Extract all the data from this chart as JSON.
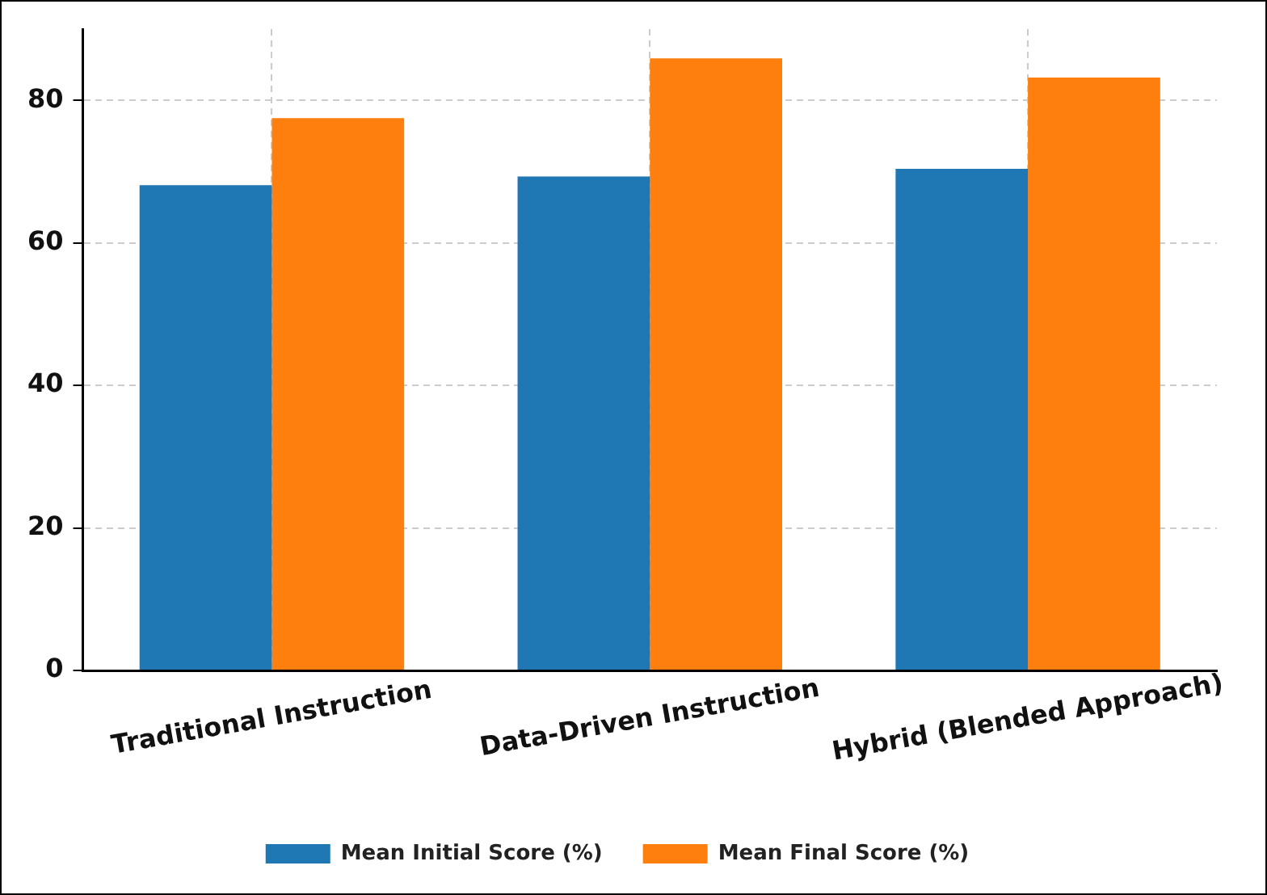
{
  "chart_data": {
    "type": "bar",
    "categories": [
      "Traditional Instruction",
      "Data-Driven Instruction",
      "Hybrid (Blended Approach)"
    ],
    "series": [
      {
        "name": "Mean Initial Score (%)",
        "color": "#1f77b4",
        "values": [
          68.1,
          69.3,
          70.4
        ]
      },
      {
        "name": "Mean Final Score (%)",
        "color": "#ff7f0e",
        "values": [
          77.5,
          85.9,
          83.2
        ]
      }
    ],
    "ylim": [
      0,
      90
    ],
    "yticks": [
      0,
      20,
      40,
      60,
      80
    ],
    "grid": true,
    "legend": "bottom"
  }
}
